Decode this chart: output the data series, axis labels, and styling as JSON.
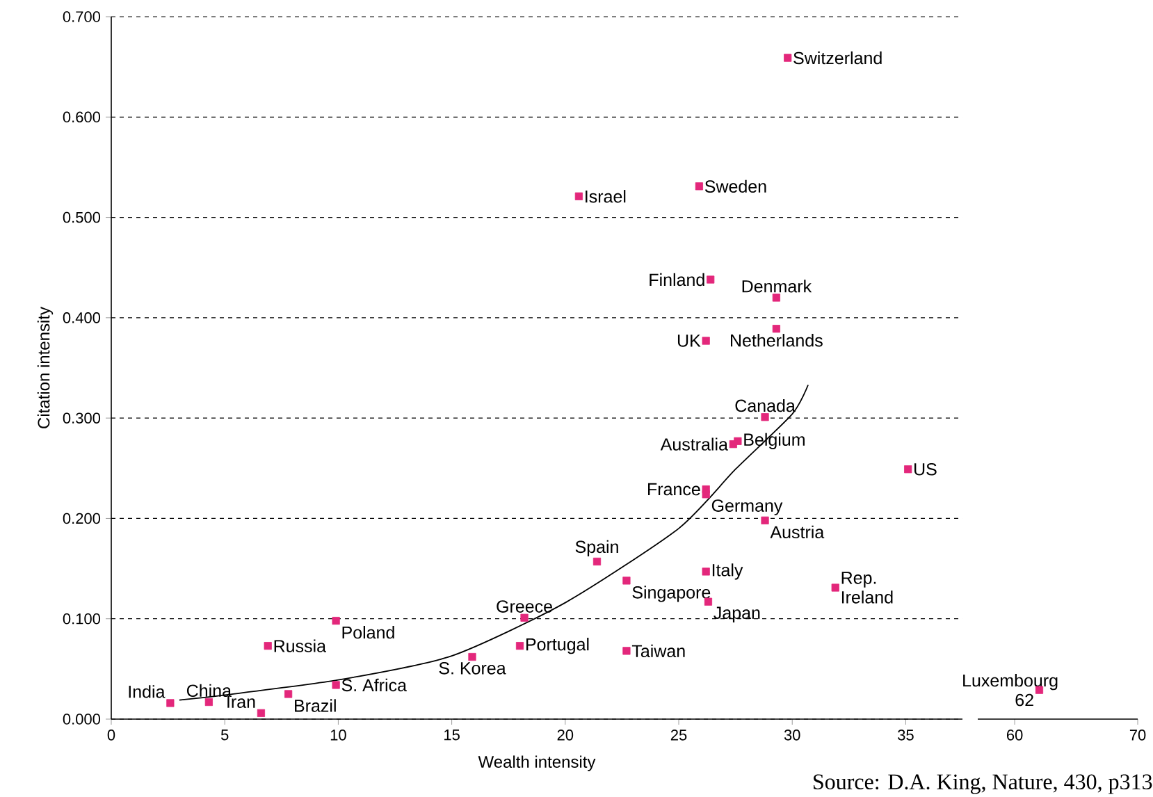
{
  "chart_data": [
    {
      "type": "scatter",
      "xlabel": "Wealth intensity",
      "ylabel": "Citation intensity",
      "xlim": [
        0,
        37.5
      ],
      "ylim": [
        0,
        0.7
      ],
      "xticks": [
        0,
        5,
        10,
        15,
        20,
        25,
        30,
        35
      ],
      "yticks": [
        {
          "value": 0,
          "label": "0.000"
        },
        {
          "value": 0.1,
          "label": "0.100"
        },
        {
          "value": 0.2,
          "label": "0.200"
        },
        {
          "value": 0.3,
          "label": "0.300"
        },
        {
          "value": 0.4,
          "label": "0.400"
        },
        {
          "value": 0.5,
          "label": "0.500"
        },
        {
          "value": 0.6,
          "label": "0.600"
        },
        {
          "value": 0.7,
          "label": "0.700"
        }
      ],
      "grid": "y",
      "marker": "square",
      "series": [
        {
          "color": "#e3277b",
          "x": [
            2.6,
            4.3,
            6.6,
            7.8,
            6.9,
            9.9,
            9.9,
            15.9,
            18.2,
            18.0,
            22.7,
            22.7,
            21.4,
            20.6,
            25.9,
            29.8,
            26.4,
            26.2,
            29.3,
            29.3,
            28.8,
            27.6,
            27.4,
            26.2,
            26.2,
            28.8,
            26.2,
            26.3,
            31.9,
            35.1
          ],
          "values": [
            0.016,
            0.017,
            0.006,
            0.025,
            0.073,
            0.098,
            0.034,
            0.062,
            0.101,
            0.073,
            0.068,
            0.138,
            0.157,
            0.521,
            0.531,
            0.659,
            0.438,
            0.377,
            0.42,
            0.389,
            0.301,
            0.277,
            0.274,
            0.229,
            0.224,
            0.198,
            0.147,
            0.117,
            0.131,
            0.249
          ]
        },
        {
          "type": "line",
          "color": "#000000",
          "marker": "none",
          "x": [
            3.0,
            5,
            10,
            15,
            20,
            25,
            27.5,
            30,
            30.7
          ],
          "values": [
            0.019,
            0.024,
            0.039,
            0.063,
            0.116,
            0.19,
            0.249,
            0.304,
            0.333
          ]
        }
      ],
      "annotations": [
        {
          "text": "India",
          "x": 2.6,
          "y": 0.016
        },
        {
          "text": "China",
          "x": 4.3,
          "y": 0.017
        },
        {
          "text": "Iran",
          "x": 6.6,
          "y": 0.006
        },
        {
          "text": "Brazil",
          "x": 7.8,
          "y": 0.025
        },
        {
          "text": "Russia",
          "x": 6.9,
          "y": 0.073
        },
        {
          "text": "Poland",
          "x": 9.9,
          "y": 0.098
        },
        {
          "text": "S. Africa",
          "x": 9.9,
          "y": 0.034
        },
        {
          "text": "S. Korea",
          "x": 15.9,
          "y": 0.062
        },
        {
          "text": "Greece",
          "x": 18.2,
          "y": 0.101
        },
        {
          "text": "Portugal",
          "x": 18.0,
          "y": 0.073
        },
        {
          "text": "Taiwan",
          "x": 22.7,
          "y": 0.068
        },
        {
          "text": "Singapore",
          "x": 22.7,
          "y": 0.138
        },
        {
          "text": "Spain",
          "x": 21.4,
          "y": 0.157
        },
        {
          "text": "Israel",
          "x": 20.6,
          "y": 0.521
        },
        {
          "text": "Sweden",
          "x": 25.9,
          "y": 0.531
        },
        {
          "text": "Switzerland",
          "x": 29.8,
          "y": 0.659
        },
        {
          "text": "Finland",
          "x": 26.4,
          "y": 0.438
        },
        {
          "text": "UK",
          "x": 26.2,
          "y": 0.377
        },
        {
          "text": "Denmark",
          "x": 29.3,
          "y": 0.42
        },
        {
          "text": "Netherlands",
          "x": 29.3,
          "y": 0.389
        },
        {
          "text": "Canada",
          "x": 28.8,
          "y": 0.301
        },
        {
          "text": "Belgium",
          "x": 27.6,
          "y": 0.277
        },
        {
          "text": "Australia",
          "x": 27.4,
          "y": 0.274
        },
        {
          "text": "France",
          "x": 26.2,
          "y": 0.229
        },
        {
          "text": "Germany",
          "x": 26.2,
          "y": 0.224
        },
        {
          "text": "Austria",
          "x": 28.8,
          "y": 0.198
        },
        {
          "text": "Italy",
          "x": 26.2,
          "y": 0.147
        },
        {
          "text": "Japan",
          "x": 26.3,
          "y": 0.117
        },
        {
          "text": "Rep. Ireland",
          "x": 31.9,
          "y": 0.131
        },
        {
          "text": "US",
          "x": 35.1,
          "y": 0.249
        },
        "Source: D.A. King, Nature, 430, p313"
      ]
    },
    {
      "type": "scatter",
      "xlim": [
        57,
        70
      ],
      "ylim": [
        0,
        0.7
      ],
      "xticks": [
        60,
        70
      ],
      "tick_labels": "x",
      "grid": "y",
      "marker": "square",
      "series": [
        {
          "color": "#e3277b",
          "x": [
            62
          ],
          "values": [
            0.029
          ]
        }
      ],
      "annotations": [
        {
          "text": "Luxembourg 62",
          "x": 62,
          "y": 0.029
        }
      ]
    }
  ]
}
